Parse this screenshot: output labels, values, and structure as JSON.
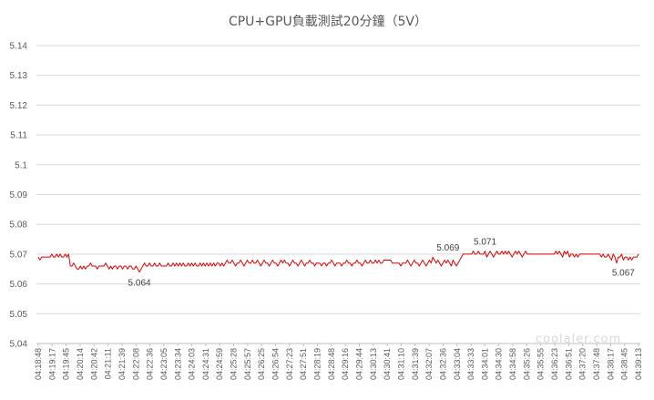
{
  "chart_data": {
    "type": "line",
    "title": "CPU+GPU負載測試20分鐘（5V）",
    "xlabel": "",
    "ylabel": "",
    "ylim": [
      5.04,
      5.14
    ],
    "yticks": [
      "5.04",
      "5.05",
      "5.06",
      "5.07",
      "5.08",
      "5.09",
      "5.1",
      "5.11",
      "5.12",
      "5.13",
      "5.14"
    ],
    "grid": true,
    "legend": "none",
    "x_tick_labels": [
      "04:18:48",
      "04:19:17",
      "04:19:45",
      "04:20:14",
      "04:20:42",
      "04:21:11",
      "04:21:39",
      "04:22:08",
      "04:22:36",
      "04:23:05",
      "04:23:34",
      "04:24:03",
      "04:24:31",
      "04:24:59",
      "04:25:28",
      "04:25:57",
      "04:26:25",
      "04:26:54",
      "04:27:23",
      "04:27:51",
      "04:28:19",
      "04:28:48",
      "04:29:16",
      "04:29:44",
      "04:30:13",
      "04:30:41",
      "04:31:10",
      "04:31:39",
      "04:32:07",
      "04:32:36",
      "04:33:04",
      "04:33:33",
      "04:34:01",
      "04:34:30",
      "04:34:58",
      "04:35:26",
      "04:35:55",
      "04:36:23",
      "04:36:51",
      "04:37:20",
      "04:37:48",
      "04:38:17",
      "04:38:45",
      "04:39:13"
    ],
    "series": [
      {
        "values": [
          5.069,
          5.068,
          5.069,
          5.069,
          5.069,
          5.069,
          5.069,
          5.069,
          5.07,
          5.069,
          5.069,
          5.07,
          5.069,
          5.07,
          5.069,
          5.069,
          5.07,
          5.069,
          5.07,
          5.066,
          5.066,
          5.067,
          5.066,
          5.065,
          5.065,
          5.066,
          5.065,
          5.066,
          5.065,
          5.066,
          5.066,
          5.067,
          5.066,
          5.066,
          5.066,
          5.065,
          5.066,
          5.066,
          5.066,
          5.066,
          5.067,
          5.066,
          5.065,
          5.066,
          5.065,
          5.066,
          5.066,
          5.065,
          5.066,
          5.066,
          5.065,
          5.066,
          5.066,
          5.065,
          5.066,
          5.066,
          5.065,
          5.065,
          5.066,
          5.065,
          5.064,
          5.065,
          5.066,
          5.067,
          5.066,
          5.066,
          5.067,
          5.066,
          5.066,
          5.067,
          5.066,
          5.066,
          5.067,
          5.066,
          5.066,
          5.066,
          5.066,
          5.067,
          5.066,
          5.066,
          5.067,
          5.066,
          5.067,
          5.066,
          5.067,
          5.066,
          5.067,
          5.066,
          5.066,
          5.067,
          5.066,
          5.067,
          5.066,
          5.067,
          5.066,
          5.066,
          5.067,
          5.066,
          5.067,
          5.066,
          5.067,
          5.066,
          5.067,
          5.066,
          5.067,
          5.066,
          5.067,
          5.067,
          5.066,
          5.067,
          5.066,
          5.067,
          5.068,
          5.067,
          5.067,
          5.068,
          5.067,
          5.066,
          5.067,
          5.067,
          5.068,
          5.067,
          5.066,
          5.067,
          5.068,
          5.067,
          5.067,
          5.068,
          5.067,
          5.067,
          5.068,
          5.067,
          5.066,
          5.067,
          5.068,
          5.067,
          5.067,
          5.066,
          5.067,
          5.068,
          5.067,
          5.067,
          5.066,
          5.067,
          5.068,
          5.067,
          5.068,
          5.067,
          5.067,
          5.066,
          5.067,
          5.068,
          5.067,
          5.067,
          5.066,
          5.067,
          5.068,
          5.067,
          5.066,
          5.067,
          5.067,
          5.068,
          5.067,
          5.067,
          5.066,
          5.067,
          5.067,
          5.067,
          5.066,
          5.067,
          5.067,
          5.066,
          5.067,
          5.067,
          5.068,
          5.067,
          5.066,
          5.067,
          5.067,
          5.067,
          5.066,
          5.067,
          5.067,
          5.068,
          5.067,
          5.067,
          5.066,
          5.067,
          5.067,
          5.068,
          5.067,
          5.067,
          5.066,
          5.067,
          5.068,
          5.067,
          5.067,
          5.068,
          5.067,
          5.067,
          5.068,
          5.067,
          5.068,
          5.067,
          5.067,
          5.068,
          5.068,
          5.068,
          5.068,
          5.068,
          5.067,
          5.067,
          5.067,
          5.067,
          5.067,
          5.066,
          5.067,
          5.067,
          5.067,
          5.068,
          5.067,
          5.066,
          5.067,
          5.068,
          5.067,
          5.067,
          5.066,
          5.067,
          5.068,
          5.067,
          5.066,
          5.067,
          5.068,
          5.067,
          5.069,
          5.068,
          5.067,
          5.068,
          5.067,
          5.066,
          5.067,
          5.068,
          5.067,
          5.068,
          5.067,
          5.066,
          5.068,
          5.067,
          5.066,
          5.067,
          5.068,
          5.069,
          5.07,
          5.07,
          5.07,
          5.07,
          5.07,
          5.07,
          5.071,
          5.07,
          5.07,
          5.071,
          5.07,
          5.07,
          5.07,
          5.071,
          5.069,
          5.07,
          5.071,
          5.07,
          5.069,
          5.07,
          5.071,
          5.07,
          5.07,
          5.071,
          5.07,
          5.071,
          5.07,
          5.071,
          5.07,
          5.069,
          5.07,
          5.071,
          5.07,
          5.071,
          5.07,
          5.069,
          5.07,
          5.071,
          5.07,
          5.07,
          5.07,
          5.07,
          5.07,
          5.07,
          5.07,
          5.07,
          5.07,
          5.07,
          5.07,
          5.07,
          5.07,
          5.07,
          5.07,
          5.07,
          5.07,
          5.071,
          5.07,
          5.071,
          5.07,
          5.069,
          5.071,
          5.07,
          5.071,
          5.069,
          5.07,
          5.07,
          5.069,
          5.07,
          5.069,
          5.07,
          5.07,
          5.07,
          5.07,
          5.07,
          5.07,
          5.07,
          5.07,
          5.07,
          5.07,
          5.07,
          5.07,
          5.07,
          5.069,
          5.07,
          5.069,
          5.069,
          5.07,
          5.069,
          5.068,
          5.07,
          5.069,
          5.067,
          5.069,
          5.069,
          5.07,
          5.068,
          5.069,
          5.069,
          5.068,
          5.069,
          5.068,
          5.069,
          5.069,
          5.069,
          5.07
        ],
        "color": "#e00000"
      }
    ],
    "annotations": [
      {
        "text": "5.064",
        "index": 60,
        "value": 5.064
      },
      {
        "text": "5.069",
        "index": 243,
        "value": 5.069
      },
      {
        "text": "5.071",
        "index": 265,
        "value": 5.071
      },
      {
        "text": "5.067",
        "index": 347,
        "value": 5.067
      }
    ]
  },
  "watermark": "coolaler.com"
}
